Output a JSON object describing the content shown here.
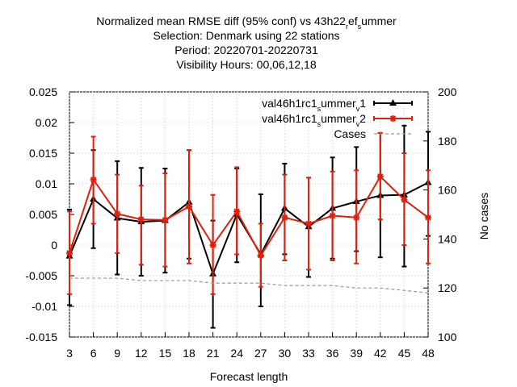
{
  "title_lines": [
    "Normalized mean RMSE diff (95% conf) vs 43h22_ref_summer",
    "Selection: Denmark using    22 stations",
    "Period: 20220701-20220731",
    "Visibility   Hours: 00,06,12,18"
  ],
  "chart_data": {
    "type": "line",
    "xlabel": "Forecast length",
    "ylabel_right": "No cases",
    "x": [
      3,
      6,
      9,
      12,
      15,
      18,
      21,
      24,
      27,
      30,
      33,
      36,
      39,
      42,
      45,
      48
    ],
    "xlim": [
      3,
      48
    ],
    "ylim": [
      -0.015,
      0.025
    ],
    "y_ticks": [
      "-0.015",
      "-0.01",
      "-0.005",
      "0",
      "0.005",
      "0.01",
      "0.015",
      "0.02",
      "0.025"
    ],
    "y2lim": [
      100,
      200
    ],
    "y2_ticks": [
      "100",
      "120",
      "140",
      "160",
      "180",
      "200"
    ],
    "x_ticks": [
      "3",
      "6",
      "9",
      "12",
      "15",
      "18",
      "21",
      "24",
      "27",
      "30",
      "33",
      "36",
      "39",
      "42",
      "45",
      "48"
    ],
    "grid": true,
    "legend_position": "top-right",
    "series": [
      {
        "name": "val46h1rc1_summer_v1",
        "color": "#000000",
        "marker": "triangle",
        "values": [
          -0.0018,
          0.0075,
          0.0044,
          0.0038,
          0.004,
          0.007,
          -0.0047,
          0.005,
          -0.0015,
          0.006,
          0.003,
          0.006,
          0.0071,
          0.0081,
          0.0082,
          0.0102
        ],
        "lower": [
          -0.0098,
          -0.0005,
          -0.0048,
          -0.005,
          -0.0045,
          -0.0022,
          -0.0135,
          -0.0028,
          -0.01,
          -0.0015,
          -0.0052,
          -0.0022,
          -0.001,
          -0.002,
          -0.0035,
          0.0015
        ],
        "upper": [
          0.0058,
          0.0155,
          0.0137,
          0.0126,
          0.0125,
          0.0155,
          0.004,
          0.0125,
          0.0083,
          0.0133,
          0.011,
          0.0143,
          0.016,
          0.0183,
          0.0195,
          0.0185
        ]
      },
      {
        "name": "val46h1rc1_summer_v2",
        "color": "#e0200b",
        "marker": "star",
        "values": [
          -0.0013,
          0.0107,
          0.0051,
          0.0042,
          0.0041,
          0.0063,
          0.0,
          0.0055,
          -0.0017,
          0.0045,
          0.0035,
          0.0048,
          0.0045,
          0.0112,
          0.0074,
          0.0045
        ],
        "lower": [
          -0.008,
          0.0035,
          -0.0013,
          -0.0032,
          -0.0035,
          -0.003,
          -0.008,
          -0.0015,
          -0.0068,
          -0.0025,
          -0.004,
          -0.0025,
          -0.003,
          0.0042,
          0.0,
          -0.003
        ],
        "upper": [
          0.0055,
          0.0177,
          0.0115,
          0.0097,
          0.0117,
          0.0155,
          0.0082,
          0.0127,
          0.0035,
          0.0115,
          0.011,
          0.012,
          0.0122,
          0.0183,
          0.015,
          0.0122
        ]
      },
      {
        "name": "Cases",
        "color": "#999999",
        "style": "dashed",
        "axis": "right",
        "values": [
          124,
          124,
          124,
          123,
          123,
          123,
          122,
          122,
          122,
          121,
          121,
          121,
          120,
          120,
          119,
          118
        ]
      }
    ]
  }
}
